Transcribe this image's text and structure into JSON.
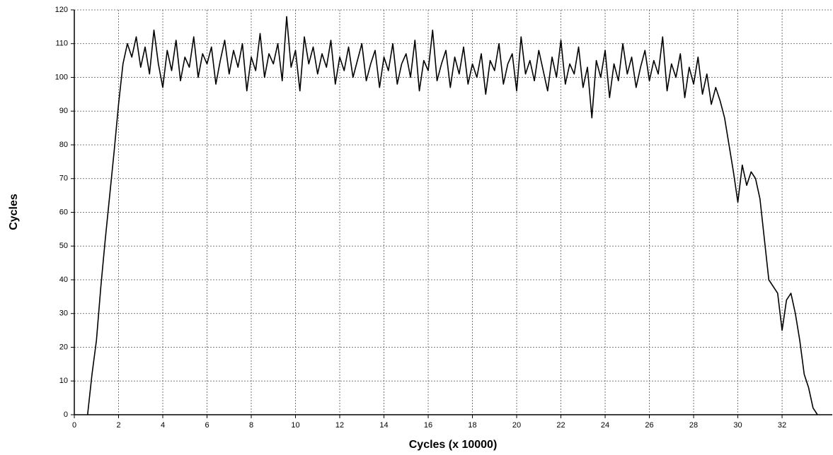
{
  "chart_data": {
    "type": "line",
    "x_label": "Cycles (x 10000)",
    "y_label": "Cycles",
    "xlim": [
      0,
      34.27
    ],
    "ylim": [
      0,
      120
    ],
    "xticks": [
      0,
      2,
      4,
      6,
      8,
      10,
      12,
      14,
      16,
      18,
      20,
      22,
      24,
      26,
      28,
      30,
      32
    ],
    "yticks": [
      0,
      10,
      20,
      30,
      40,
      50,
      60,
      70,
      80,
      90,
      100,
      110,
      120
    ],
    "grid": true,
    "series": [
      {
        "color": "#000000",
        "x": [
          0.6,
          0.8,
          1.0,
          1.2,
          1.4,
          1.6,
          1.8,
          2.0,
          2.2,
          2.4,
          2.6,
          2.8,
          3.0,
          3.2,
          3.4,
          3.6,
          3.8,
          4.0,
          4.2,
          4.4,
          4.6,
          4.8,
          5.0,
          5.2,
          5.4,
          5.6,
          5.8,
          6.0,
          6.2,
          6.4,
          6.6,
          6.8,
          7.0,
          7.2,
          7.4,
          7.6,
          7.8,
          8.0,
          8.2,
          8.4,
          8.6,
          8.8,
          9.0,
          9.2,
          9.4,
          9.6,
          9.8,
          10.0,
          10.2,
          10.4,
          10.6,
          10.8,
          11.0,
          11.2,
          11.4,
          11.6,
          11.8,
          12.0,
          12.2,
          12.4,
          12.6,
          12.8,
          13.0,
          13.2,
          13.4,
          13.6,
          13.8,
          14.0,
          14.2,
          14.4,
          14.6,
          14.8,
          15.0,
          15.2,
          15.4,
          15.6,
          15.8,
          16.0,
          16.2,
          16.4,
          16.6,
          16.8,
          17.0,
          17.2,
          17.4,
          17.6,
          17.8,
          18.0,
          18.2,
          18.4,
          18.6,
          18.8,
          19.0,
          19.2,
          19.4,
          19.6,
          19.8,
          20.0,
          20.2,
          20.4,
          20.6,
          20.8,
          21.0,
          21.2,
          21.4,
          21.6,
          21.8,
          22.0,
          22.2,
          22.4,
          22.6,
          22.8,
          23.0,
          23.2,
          23.4,
          23.6,
          23.8,
          24.0,
          24.2,
          24.4,
          24.6,
          24.8,
          25.0,
          25.2,
          25.4,
          25.6,
          25.8,
          26.0,
          26.2,
          26.4,
          26.6,
          26.8,
          27.0,
          27.2,
          27.4,
          27.6,
          27.8,
          28.0,
          28.2,
          28.4,
          28.6,
          28.8,
          29.0,
          29.2,
          29.4,
          29.6,
          29.8,
          30.0,
          30.2,
          30.4,
          30.6,
          30.8,
          31.0,
          31.2,
          31.4,
          31.6,
          31.8,
          32.0,
          32.2,
          32.4,
          32.6,
          32.8,
          33.0,
          33.2,
          33.4,
          33.6
        ],
        "values": [
          0,
          12,
          22,
          38,
          52,
          65,
          78,
          92,
          104,
          110,
          106,
          112,
          103,
          109,
          101,
          114,
          104,
          97,
          108,
          102,
          111,
          99,
          106,
          103,
          112,
          100,
          107,
          104,
          109,
          98,
          105,
          111,
          101,
          108,
          103,
          110,
          96,
          106,
          102,
          113,
          100,
          107,
          104,
          110,
          99,
          118,
          103,
          108,
          96,
          112,
          104,
          109,
          101,
          107,
          103,
          111,
          98,
          106,
          102,
          109,
          100,
          105,
          110,
          99,
          104,
          108,
          97,
          106,
          102,
          110,
          98,
          104,
          107,
          100,
          111,
          96,
          105,
          102,
          114,
          99,
          104,
          108,
          97,
          106,
          101,
          109,
          98,
          104,
          100,
          107,
          95,
          105,
          102,
          110,
          98,
          104,
          107,
          96,
          112,
          101,
          105,
          99,
          108,
          102,
          96,
          106,
          100,
          111,
          98,
          104,
          101,
          109,
          97,
          103,
          88,
          105,
          100,
          108,
          94,
          104,
          99,
          110,
          101,
          106,
          97,
          103,
          108,
          99,
          105,
          101,
          112,
          96,
          104,
          100,
          107,
          94,
          103,
          98,
          106,
          95,
          101,
          92,
          97,
          93,
          88,
          80,
          72,
          63,
          74,
          68,
          72,
          70,
          64,
          52,
          40,
          38,
          36,
          25,
          34,
          36,
          30,
          22,
          12,
          8,
          2,
          0
        ]
      }
    ]
  }
}
